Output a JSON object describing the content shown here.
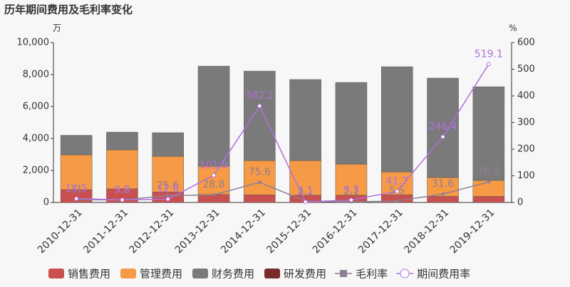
{
  "chart_data": {
    "type": "bar",
    "title": "历年期间费用及毛利率变化",
    "y_unit": "万",
    "y2_unit": "%",
    "categories": [
      "2010-12-31",
      "2011-12-31",
      "2012-12-31",
      "2013-12-31",
      "2014-12-31",
      "2015-12-31",
      "2016-12-31",
      "2017-12-31",
      "2018-12-31",
      "2019-12-31"
    ],
    "series": [
      {
        "name": "销售费用",
        "color": "#c9504f",
        "values": [
          800,
          850,
          650,
          500,
          480,
          450,
          450,
          480,
          380,
          380
        ]
      },
      {
        "name": "管理费用",
        "color": "#f79a45",
        "values": [
          2180,
          2440,
          2240,
          1770,
          2140,
          2170,
          1950,
          1430,
          1180,
          1000
        ]
      },
      {
        "name": "财务费用",
        "color": "#7a7a7a",
        "values": [
          1220,
          1110,
          1470,
          6260,
          5600,
          5070,
          5110,
          6580,
          6220,
          5860
        ]
      },
      {
        "name": "研发费用",
        "color": "#7b2a2a",
        "values": [
          0,
          0,
          0,
          0,
          0,
          0,
          0,
          0,
          0,
          0
        ]
      },
      {
        "name": "毛利率",
        "type": "line",
        "marker": "square",
        "axis": "y2",
        "color": "#8e7f94",
        "values": [
          11,
          9.2,
          25.6,
          28.8,
          75.6,
          5.1,
          2.1,
          5.5,
          31.6,
          76.9
        ]
      },
      {
        "name": "期间费用率",
        "type": "line",
        "marker": "circle",
        "axis": "y2",
        "color": "#b36fdc",
        "values": [
          14.5,
          9.8,
          12.6,
          101.9,
          362.2,
          2.1,
          9.3,
          41.7,
          246.4,
          519.1
        ]
      }
    ],
    "ylim": [
      0,
      10000
    ],
    "yticks": [
      0,
      {
        "value": 2000,
        "label": "2,000"
      },
      {
        "value": 4000,
        "label": "4,000"
      },
      {
        "value": 6000,
        "label": "6,000"
      },
      {
        "value": 8000,
        "label": "8,000"
      },
      {
        "value": 10000,
        "label": "10,000"
      }
    ],
    "y2lim": [
      0,
      600
    ],
    "y2ticks": [
      0,
      100,
      200,
      300,
      400,
      500,
      600
    ],
    "stacked": true
  }
}
